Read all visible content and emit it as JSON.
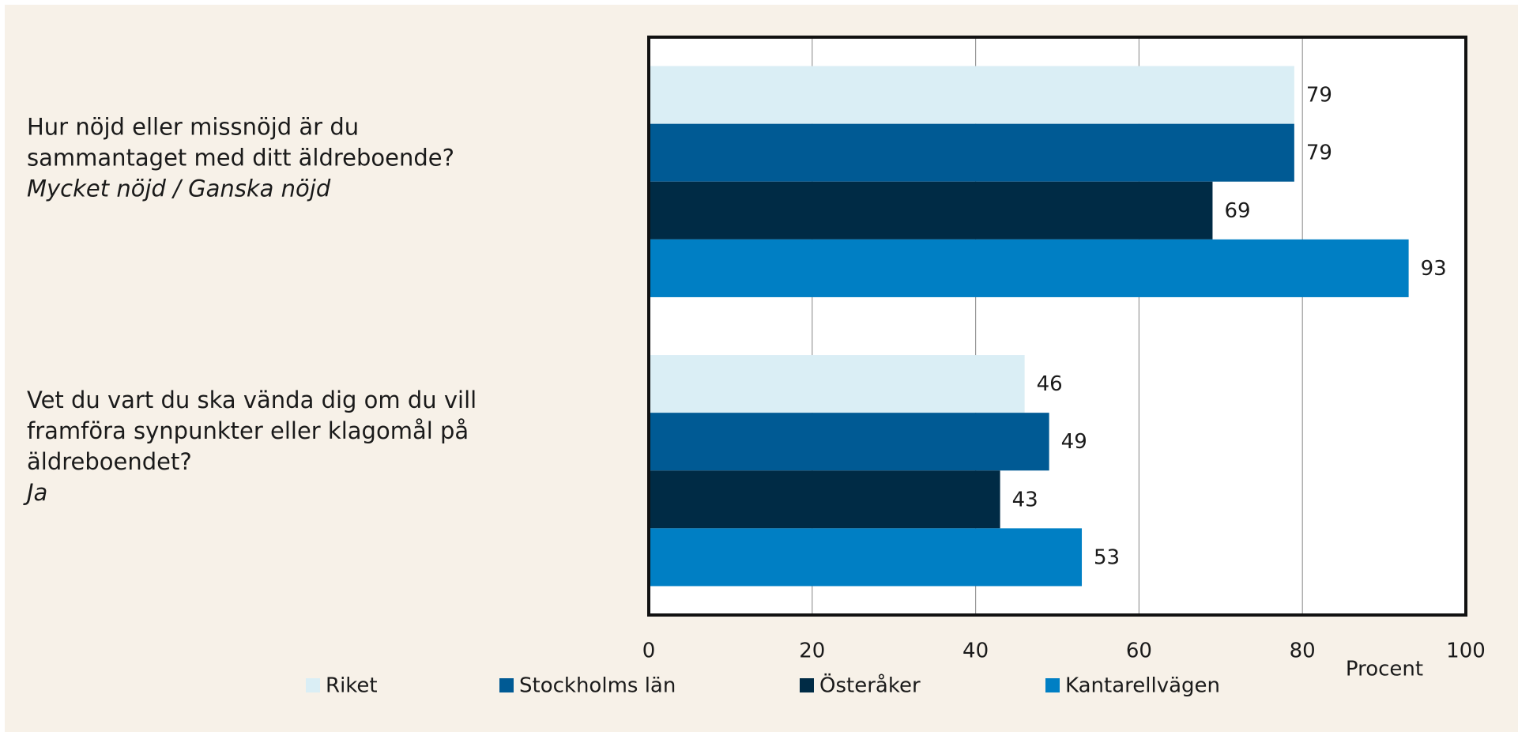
{
  "chart_data": {
    "type": "barh",
    "categories": [
      "Hur nöjd eller missnöjd är du sammantaget med ditt äldreboende?",
      "Vet du vart du ska vända dig om du vill framföra synpunkter eller klagomål på äldreboendet?"
    ],
    "category_notes": [
      "Mycket nöjd / Ganska nöjd",
      "Ja"
    ],
    "series": [
      {
        "name": "Riket",
        "color": "#daeef5",
        "values": [
          79,
          46
        ]
      },
      {
        "name": "Stockholms län",
        "color": "#005a94",
        "values": [
          79,
          49
        ]
      },
      {
        "name": "Österåker",
        "color": "#002b45",
        "values": [
          69,
          43
        ]
      },
      {
        "name": "Kantarellvägen",
        "color": "#007fc4",
        "values": [
          93,
          53
        ]
      }
    ],
    "xlabel": "Procent",
    "xlim": [
      0,
      100
    ],
    "xticks": [
      0,
      20,
      40,
      60,
      80,
      100
    ],
    "grid": true,
    "legend": "bottom"
  }
}
